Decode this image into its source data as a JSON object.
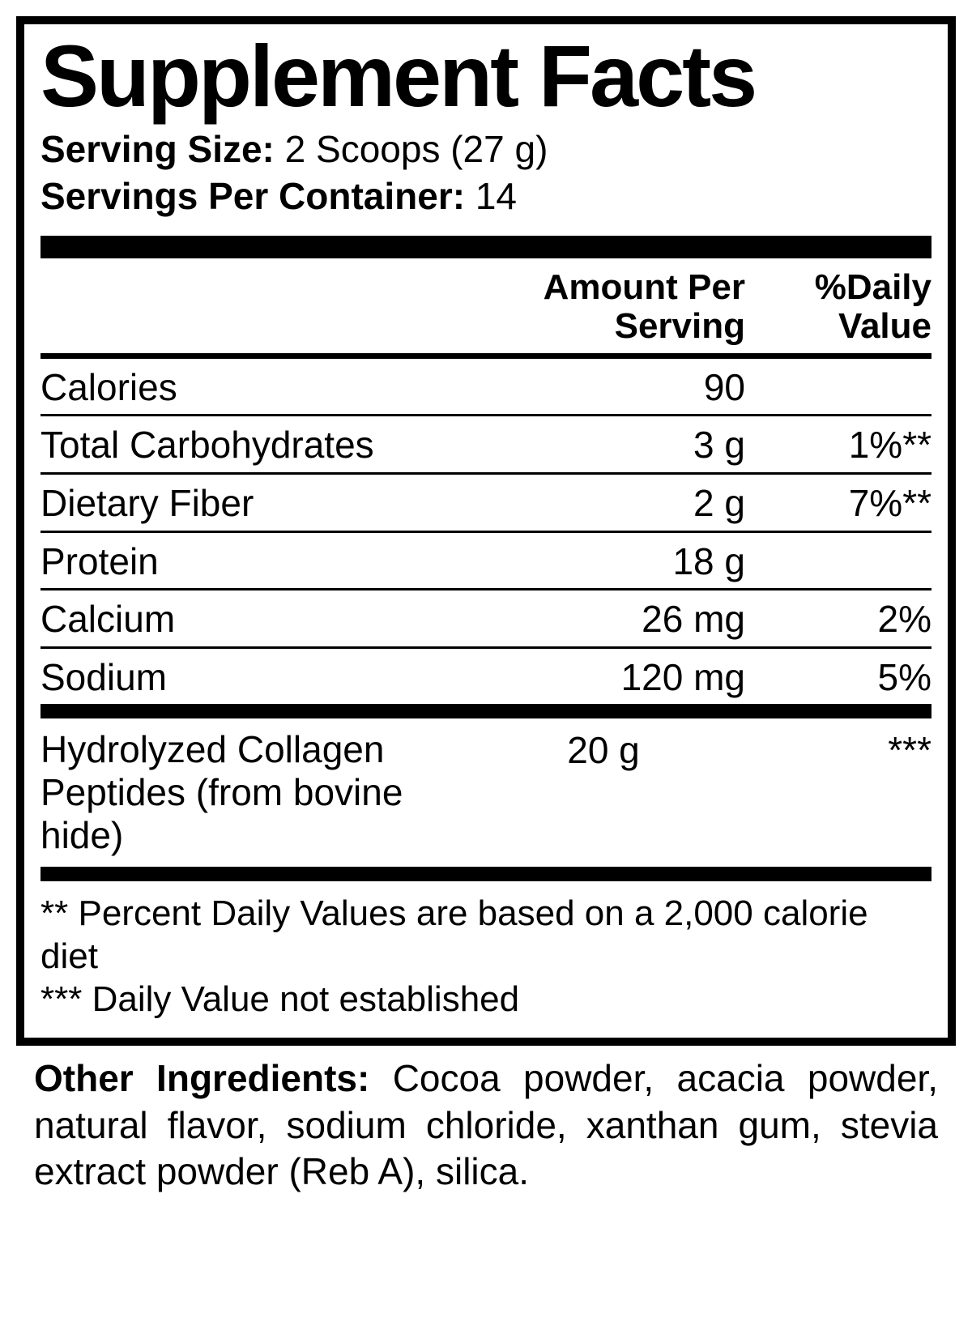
{
  "title": "Supplement Facts",
  "serving": {
    "size_label": "Serving Size:",
    "size_value": "2 Scoops (27 g)",
    "per_container_label": "Servings Per Container:",
    "per_container_value": "14"
  },
  "headers": {
    "amount_line1": "Amount Per",
    "amount_line2": "Serving",
    "dv_line1": "%Daily",
    "dv_line2": "Value"
  },
  "nutrients": [
    {
      "name": "Calories",
      "amount": "90",
      "dv": ""
    },
    {
      "name": "Total Carbohydrates",
      "amount": "3 g",
      "dv": "1%**"
    },
    {
      "name": "Dietary Fiber",
      "amount": "2 g",
      "dv": "7%**"
    },
    {
      "name": "Protein",
      "amount": "18 g",
      "dv": ""
    },
    {
      "name": "Calcium",
      "amount": "26 mg",
      "dv": "2%"
    },
    {
      "name": "Sodium",
      "amount": "120 mg",
      "dv": "5%"
    }
  ],
  "ingredient": {
    "name": "Hydrolyzed Collagen Peptides (from bovine hide)",
    "amount": "20 g",
    "dv": "***"
  },
  "footnotes": {
    "line1": "** Percent Daily Values are based on a 2,000 calorie diet",
    "line2": "*** Daily Value not established"
  },
  "other_ingredients": {
    "label": "Other Ingredients:",
    "text": "Cocoa powder, acacia powder, natural flavor, sodium chloride, xanthan gum, stevia extract powder (Reb A), silica."
  },
  "styling": {
    "border_color": "#000000",
    "background_color": "#ffffff",
    "text_color": "#000000",
    "title_fontsize": 108,
    "body_fontsize": 46,
    "border_width": 10,
    "thick_bar_height": 28,
    "medium_bar_height": 18,
    "thin_rule_height": 3,
    "header_rule_height": 7
  }
}
